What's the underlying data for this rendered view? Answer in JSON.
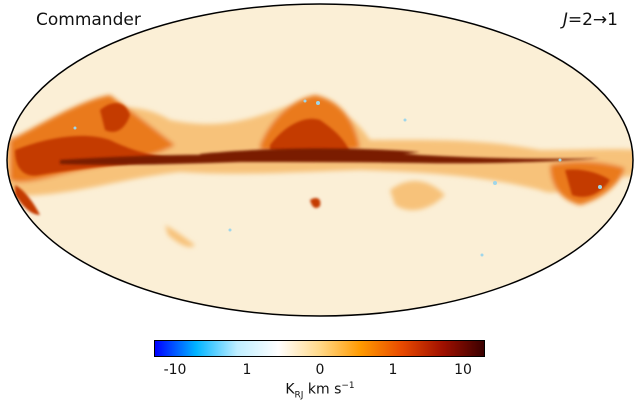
{
  "map": {
    "label": "Commander",
    "transition": {
      "J": "J",
      "text": "=2→1"
    },
    "projection": "Mollweide",
    "colors": {
      "background": "#fbefd6",
      "plane": "#7a1a00",
      "strong": "#c43a00",
      "medium": "#ea7a1c",
      "weak": "#f7c27a",
      "negative": "#9fd6ea"
    }
  },
  "colorbar": {
    "ticks": [
      "-10",
      "1",
      "0",
      "1",
      "10"
    ],
    "unit": {
      "K": "K",
      "sub": "RJ",
      "mid": " km s",
      "sup": "−1"
    },
    "gradient": [
      "#0000ff",
      "#00b4ff",
      "#bfeeff",
      "#ffffff",
      "#ffd98a",
      "#ff9a00",
      "#e84a00",
      "#a01000",
      "#3a0000"
    ]
  }
}
